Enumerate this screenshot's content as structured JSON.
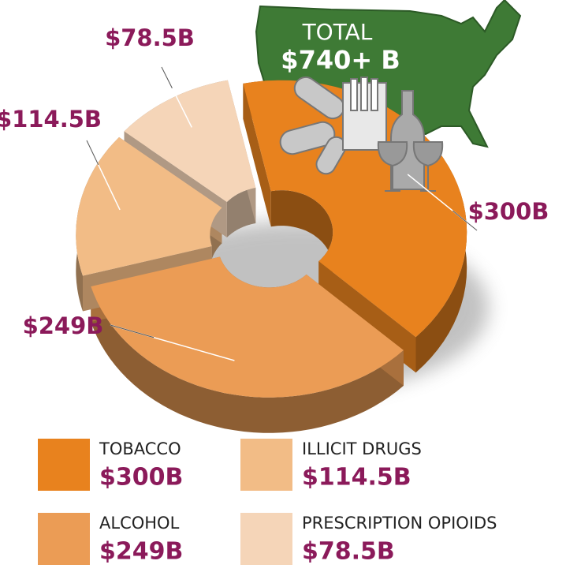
{
  "chart_data": {
    "type": "pie",
    "donut": true,
    "categories": [
      "TOBACCO",
      "ALCOHOL",
      "ILLICIT DRUGS",
      "PRESCRIPTION OPIOIDS"
    ],
    "values": [
      300,
      249,
      114.5,
      78.5
    ],
    "value_labels": [
      "$300B",
      "$249B",
      "$114.5B",
      "$78.5B"
    ],
    "colors": [
      "#e8821e",
      "#eb9c55",
      "#f2bc86",
      "#f5d5b8"
    ],
    "annotations": [
      "TOTAL",
      "$740+ B"
    ]
  }
}
